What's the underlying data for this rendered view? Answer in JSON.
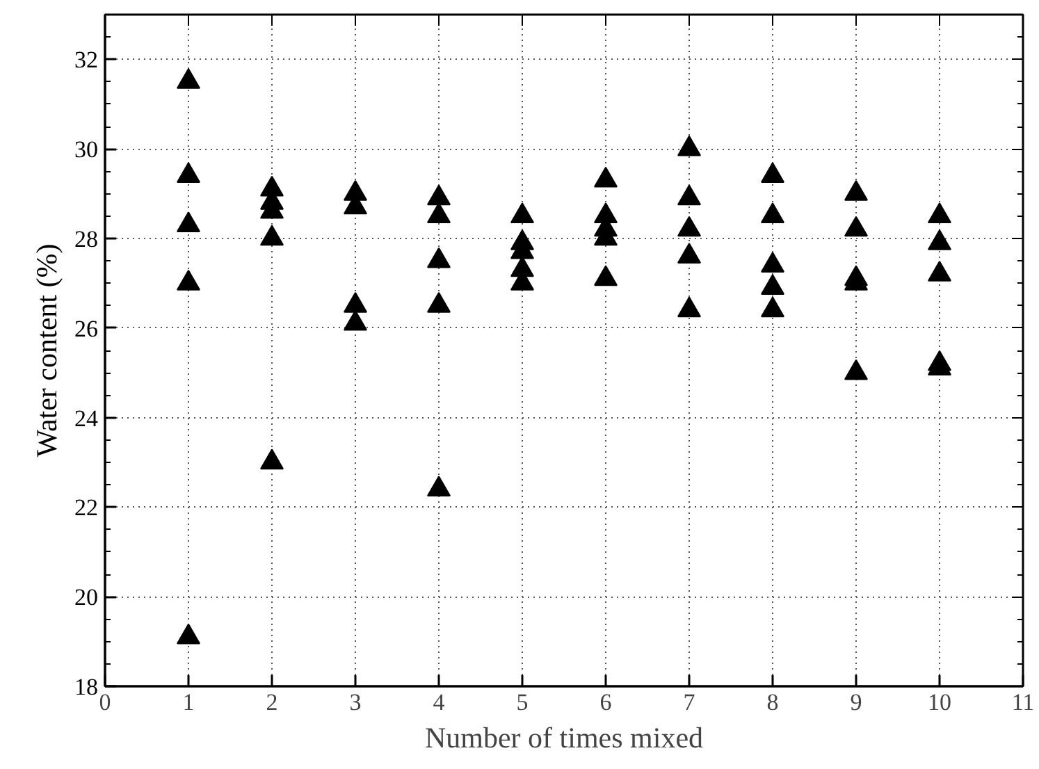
{
  "chart_data": {
    "type": "scatter",
    "xlabel": "Number of times mixed",
    "ylabel": "Water content (%)",
    "x": [
      1,
      1,
      1,
      1,
      1,
      2,
      2,
      2,
      2,
      2,
      3,
      3,
      3,
      3,
      4,
      4,
      4,
      4,
      4,
      5,
      5,
      5,
      5,
      5,
      6,
      6,
      6,
      6,
      6,
      7,
      7,
      7,
      7,
      7,
      8,
      8,
      8,
      8,
      8,
      9,
      9,
      9,
      9,
      9,
      10,
      10,
      10,
      10,
      10
    ],
    "series": [
      {
        "color": "#000000",
        "values": [
          31.5,
          29.4,
          28.3,
          27.0,
          19.1,
          29.1,
          28.8,
          28.6,
          28.0,
          23.0,
          29.0,
          28.7,
          26.5,
          26.1,
          28.9,
          28.5,
          27.5,
          26.5,
          22.4,
          28.5,
          27.9,
          27.7,
          27.3,
          27.0,
          29.3,
          28.5,
          28.2,
          28.0,
          27.1,
          30.0,
          28.9,
          28.2,
          27.6,
          26.4,
          29.4,
          28.5,
          27.4,
          26.9,
          26.4,
          29.0,
          28.2,
          27.1,
          27.0,
          25.0,
          28.5,
          27.9,
          27.2,
          25.2,
          25.1
        ]
      }
    ],
    "xlim": [
      0,
      11
    ],
    "xticks": [
      0,
      1,
      2,
      3,
      4,
      5,
      6,
      7,
      8,
      9,
      10,
      11
    ],
    "ylim": [
      18,
      33
    ],
    "yticks": [
      18,
      20,
      22,
      24,
      26,
      28,
      30,
      32
    ],
    "grid": true,
    "marker": "triangle"
  }
}
